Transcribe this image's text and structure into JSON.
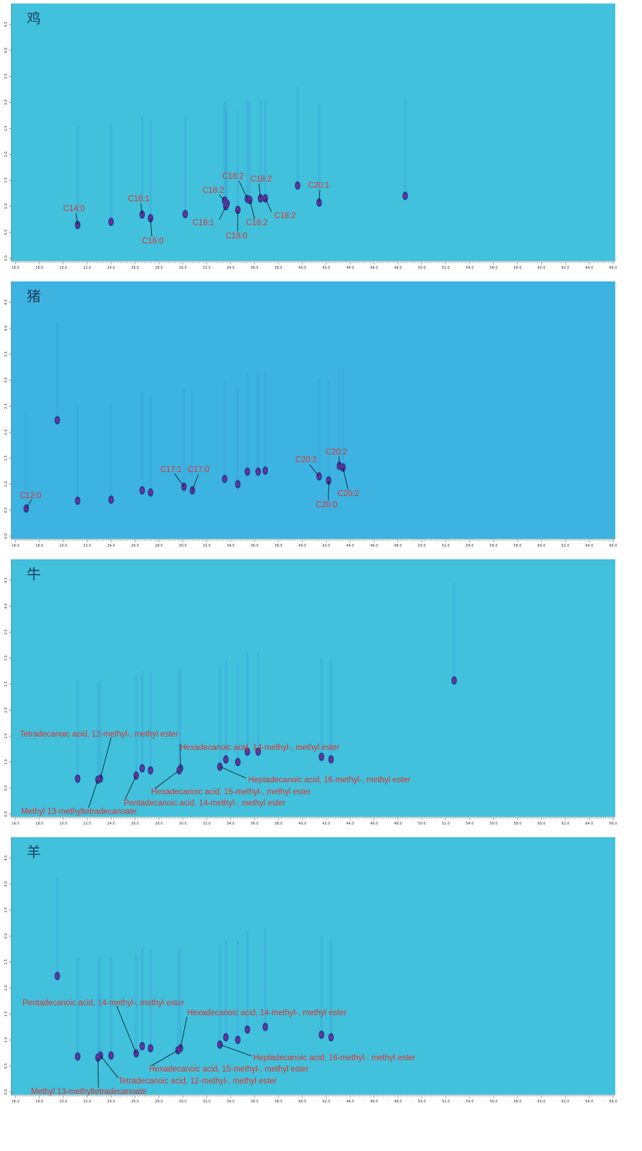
{
  "chart_data": [
    {
      "type": "contour",
      "title": "鸡",
      "xlim": [
        16,
        66
      ],
      "ylim": [
        0,
        4.9
      ],
      "xticks": [
        {
          "value": 16,
          "label": "16.0"
        },
        {
          "value": 18,
          "label": "18.0"
        },
        {
          "value": 20,
          "label": "20.0"
        },
        {
          "value": 22,
          "label": "22.0"
        },
        {
          "value": 24,
          "label": "24.0"
        },
        {
          "value": 26,
          "label": "26.0"
        },
        {
          "value": 28,
          "label": "28.0"
        },
        {
          "value": 30,
          "label": "30.0"
        },
        {
          "value": 32,
          "label": "32.0"
        },
        {
          "value": 34,
          "label": "34.0"
        },
        {
          "value": 36,
          "label": "36.0"
        },
        {
          "value": 38,
          "label": "38.0"
        },
        {
          "value": 40,
          "label": "40.0"
        },
        {
          "value": 42,
          "label": "42.0"
        },
        {
          "value": 44,
          "label": "44.0"
        },
        {
          "value": 46,
          "label": "46.0"
        },
        {
          "value": 48,
          "label": "48.0"
        },
        {
          "value": 50,
          "label": "50.0"
        },
        {
          "value": 52,
          "label": "52.0"
        },
        {
          "value": 54,
          "label": "54.0"
        },
        {
          "value": 56,
          "label": "56.0"
        },
        {
          "value": 58,
          "label": "58.0"
        },
        {
          "value": 60,
          "label": "60.0"
        },
        {
          "value": 62,
          "label": "62.0"
        },
        {
          "value": 64,
          "label": "64.0"
        },
        {
          "value": 66,
          "label": "66.0"
        }
      ],
      "yticks": [
        {
          "value": 0,
          "label": "0.0"
        },
        0.5,
        {
          "value": 1,
          "label": "1.0"
        },
        1.5,
        {
          "value": 2,
          "label": "2.0"
        },
        2.5,
        {
          "value": 3,
          "label": "3.0"
        },
        3.5,
        {
          "value": 4,
          "label": "4.0"
        },
        4.5
      ],
      "peaks": [
        {
          "x": 24.0,
          "y": 0.7
        },
        {
          "x": 30.2,
          "y": 0.85
        },
        {
          "x": 33.7,
          "y": 1.05
        },
        {
          "x": 39.6,
          "y": 1.4
        },
        {
          "x": 48.6,
          "y": 1.2
        }
      ],
      "annotations": [
        {
          "text": "C14:0",
          "x": 21.2,
          "y": 0.64
        },
        {
          "text": "C16:1",
          "x": 26.6,
          "y": 0.84
        },
        {
          "text": "C16:0",
          "x": 27.3,
          "y": 0.77
        },
        {
          "text": "C18:1",
          "x": 33.6,
          "y": 1.0
        },
        {
          "text": "C18:2",
          "x": 33.5,
          "y": 1.11
        },
        {
          "text": "C18:0",
          "x": 34.6,
          "y": 0.93
        },
        {
          "text": "C18:2",
          "x": 35.4,
          "y": 1.14
        },
        {
          "text": "C18:2",
          "x": 36.5,
          "y": 1.15
        },
        {
          "text": "C18:2",
          "x": 35.6,
          "y": 1.12
        },
        {
          "text": "C18:2",
          "x": 36.9,
          "y": 1.15
        },
        {
          "text": "C20:1",
          "x": 41.4,
          "y": 1.07
        }
      ]
    },
    {
      "type": "contour",
      "title": "猪",
      "xlim": [
        16,
        66
      ],
      "ylim": [
        0,
        4.9
      ],
      "xticks": [
        {
          "value": 16,
          "label": "16.0"
        },
        {
          "value": 18,
          "label": "18.0"
        },
        {
          "value": 20,
          "label": "20.0"
        },
        {
          "value": 22,
          "label": "22.0"
        },
        {
          "value": 24,
          "label": "24.0"
        },
        {
          "value": 26,
          "label": "26.0"
        },
        {
          "value": 28,
          "label": "28.0"
        },
        {
          "value": 30,
          "label": "30.0"
        },
        {
          "value": 32,
          "label": "32.0"
        },
        {
          "value": 34,
          "label": "34.0"
        },
        {
          "value": 36,
          "label": "36.0"
        },
        {
          "value": 38,
          "label": "38.0"
        },
        {
          "value": 40,
          "label": "40.0"
        },
        {
          "value": 42,
          "label": "42.0"
        },
        {
          "value": 44,
          "label": "44.0"
        },
        {
          "value": 46,
          "label": "46.0"
        },
        {
          "value": 48,
          "label": "48.0"
        },
        {
          "value": 50,
          "label": "50.0"
        },
        {
          "value": 52,
          "label": "52.0"
        },
        {
          "value": 54,
          "label": "54.0"
        },
        {
          "value": 56,
          "label": "56.0"
        },
        {
          "value": 58,
          "label": "58.0"
        },
        {
          "value": 60,
          "label": "60.0"
        },
        {
          "value": 62,
          "label": "62.0"
        },
        {
          "value": 64,
          "label": "64.0"
        },
        {
          "value": 66,
          "label": "66.0"
        }
      ],
      "yticks": [
        {
          "value": 0,
          "label": "0.0"
        },
        0.5,
        {
          "value": 1,
          "label": "1.0"
        },
        1.5,
        {
          "value": 2,
          "label": "2.0"
        },
        2.5,
        {
          "value": 3,
          "label": "3.0"
        },
        3.5,
        {
          "value": 4,
          "label": "4.0"
        },
        4.5
      ],
      "peaks": [
        {
          "x": 19.5,
          "y": 2.23
        },
        {
          "x": 21.2,
          "y": 0.68
        },
        {
          "x": 24.0,
          "y": 0.7
        },
        {
          "x": 26.6,
          "y": 0.88
        },
        {
          "x": 27.3,
          "y": 0.84
        },
        {
          "x": 33.5,
          "y": 1.1
        },
        {
          "x": 34.6,
          "y": 1.0
        },
        {
          "x": 35.4,
          "y": 1.24
        },
        {
          "x": 36.3,
          "y": 1.24
        },
        {
          "x": 36.9,
          "y": 1.26
        }
      ],
      "annotations": [
        {
          "text": "C12:0",
          "x": 16.9,
          "y": 0.53
        },
        {
          "text": "C17:1",
          "x": 30.1,
          "y": 0.95
        },
        {
          "text": "C17:0",
          "x": 30.8,
          "y": 0.88
        },
        {
          "text": "C20:2",
          "x": 41.4,
          "y": 1.15
        },
        {
          "text": "C20:2",
          "x": 43.1,
          "y": 1.35
        },
        {
          "text": "C20:2",
          "x": 43.4,
          "y": 1.32
        },
        {
          "text": "C20:0",
          "x": 42.2,
          "y": 1.07
        }
      ]
    },
    {
      "type": "contour",
      "title": "牛",
      "xlim": [
        16,
        66
      ],
      "ylim": [
        0,
        4.9
      ],
      "xticks": [
        {
          "value": 16,
          "label": "16.0"
        },
        {
          "value": 18,
          "label": "18.0"
        },
        {
          "value": 20,
          "label": "20.0"
        },
        {
          "value": 22,
          "label": "22.0"
        },
        {
          "value": 24,
          "label": "24.0"
        },
        {
          "value": 26,
          "label": "26.0"
        },
        {
          "value": 28,
          "label": "28.0"
        },
        {
          "value": 30,
          "label": "30.0"
        },
        {
          "value": 32,
          "label": "32.0"
        },
        {
          "value": 34,
          "label": "34.0"
        },
        {
          "value": 36,
          "label": "36.0"
        },
        {
          "value": 38,
          "label": "38.0"
        },
        {
          "value": 40,
          "label": "40.0"
        },
        {
          "value": 42,
          "label": "42.0"
        },
        {
          "value": 44,
          "label": "44.0"
        },
        {
          "value": 46,
          "label": "46.0"
        },
        {
          "value": 48,
          "label": "48.0"
        },
        {
          "value": 50,
          "label": "50.0"
        },
        {
          "value": 52,
          "label": "52.0"
        },
        {
          "value": 54,
          "label": "54.0"
        },
        {
          "value": 56,
          "label": "56.0"
        },
        {
          "value": 58,
          "label": "58.0"
        },
        {
          "value": 60,
          "label": "60.0"
        },
        {
          "value": 62,
          "label": "62.0"
        },
        {
          "value": 64,
          "label": "64.0"
        },
        {
          "value": 66,
          "label": "66.0"
        }
      ],
      "yticks": [
        {
          "value": 0,
          "label": "0.0"
        },
        0.5,
        {
          "value": 1,
          "label": "1.0"
        },
        1.5,
        {
          "value": 2,
          "label": "2.0"
        },
        2.5,
        {
          "value": 3,
          "label": "3.0"
        },
        3.5,
        {
          "value": 4,
          "label": "4.0"
        },
        4.5
      ],
      "peaks": [
        {
          "x": 21.2,
          "y": 0.68
        },
        {
          "x": 26.6,
          "y": 0.88
        },
        {
          "x": 27.3,
          "y": 0.84
        },
        {
          "x": 33.6,
          "y": 1.05
        },
        {
          "x": 34.6,
          "y": 1.0
        },
        {
          "x": 35.4,
          "y": 1.2
        },
        {
          "x": 36.3,
          "y": 1.2
        },
        {
          "x": 41.6,
          "y": 1.1
        },
        {
          "x": 42.4,
          "y": 1.05
        },
        {
          "x": 52.7,
          "y": 2.57
        }
      ],
      "annotations": [
        {
          "text": "Tetradecanoic acid, 12-methyl-, methyl ester",
          "x": 23.1,
          "y": 0.68
        },
        {
          "text": "Hexadecanoic acid, 14-methyl-, methyl ester",
          "x": 29.8,
          "y": 0.88
        },
        {
          "text": "Heptadecanoic acid, 16-methyl-, methyl ester",
          "x": 33.1,
          "y": 0.91
        },
        {
          "text": "Hexadecanoic acid, 15-methyl-, methyl ester",
          "x": 29.7,
          "y": 0.84
        },
        {
          "text": "Pentadecanoic acid, 14-methyl-, methyl ester",
          "x": 26.1,
          "y": 0.74
        },
        {
          "text": "Methyl 13-methyltetradecanoate",
          "x": 22.9,
          "y": 0.66
        }
      ]
    },
    {
      "type": "contour",
      "title": "羊",
      "xlim": [
        16,
        66
      ],
      "ylim": [
        0,
        4.9
      ],
      "xticks": [
        {
          "value": 16,
          "label": "16.0"
        },
        {
          "value": 18,
          "label": "18.0"
        },
        {
          "value": 20,
          "label": "20.0"
        },
        {
          "value": 22,
          "label": "22.0"
        },
        {
          "value": 24,
          "label": "24.0"
        },
        {
          "value": 26,
          "label": "26.0"
        },
        {
          "value": 28,
          "label": "28.0"
        },
        {
          "value": 30,
          "label": "30.0"
        },
        {
          "value": 32,
          "label": "32.0"
        },
        {
          "value": 34,
          "label": "34.0"
        },
        {
          "value": 36,
          "label": "36.0"
        },
        {
          "value": 38,
          "label": "38.0"
        },
        {
          "value": 40,
          "label": "40.0"
        },
        {
          "value": 42,
          "label": "42.0"
        },
        {
          "value": 44,
          "label": "44.0"
        },
        {
          "value": 46,
          "label": "46.0"
        },
        {
          "value": 48,
          "label": "48.0"
        },
        {
          "value": 50,
          "label": "50.0"
        },
        {
          "value": 52,
          "label": "52.0"
        },
        {
          "value": 54,
          "label": "54.0"
        },
        {
          "value": 56,
          "label": "56.0"
        },
        {
          "value": 58,
          "label": "58.0"
        },
        {
          "value": 60,
          "label": "60.0"
        },
        {
          "value": 62,
          "label": "62.0"
        },
        {
          "value": 64,
          "label": "64.0"
        },
        {
          "value": 66,
          "label": "66.0"
        }
      ],
      "yticks": [
        {
          "value": 0,
          "label": "0.0"
        },
        0.5,
        {
          "value": 1,
          "label": "1.0"
        },
        1.5,
        {
          "value": 2,
          "label": "2.0"
        },
        2.5,
        {
          "value": 3,
          "label": "3.0"
        },
        3.5,
        {
          "value": 4,
          "label": "4.0"
        },
        4.5
      ],
      "peaks": [
        {
          "x": 19.5,
          "y": 2.23
        },
        {
          "x": 21.2,
          "y": 0.68
        },
        {
          "x": 24.0,
          "y": 0.7
        },
        {
          "x": 26.6,
          "y": 0.88
        },
        {
          "x": 27.3,
          "y": 0.84
        },
        {
          "x": 33.6,
          "y": 1.05
        },
        {
          "x": 34.6,
          "y": 1.0
        },
        {
          "x": 35.4,
          "y": 1.2
        },
        {
          "x": 36.9,
          "y": 1.25
        },
        {
          "x": 41.6,
          "y": 1.1
        },
        {
          "x": 42.4,
          "y": 1.05
        }
      ],
      "annotations": [
        {
          "text": "Pentadecanoic acid, 14-methyl-, methyl ester",
          "x": 26.1,
          "y": 0.74
        },
        {
          "text": "Hexadecanoic acid, 14-methyl-, methyl ester",
          "x": 29.8,
          "y": 0.84
        },
        {
          "text": "Heptadecanoic acid, 16-methyl-, methyl ester",
          "x": 33.1,
          "y": 0.91
        },
        {
          "text": "Hexadecanoic acid, 15-methyl-, methyl ester",
          "x": 29.6,
          "y": 0.8
        },
        {
          "text": "Tetradecanoic acid, 12-methyl-, methyl ester",
          "x": 23.1,
          "y": 0.7
        },
        {
          "text": "Methyl 13-methyltetradecanoate",
          "x": 22.9,
          "y": 0.66
        }
      ]
    }
  ]
}
